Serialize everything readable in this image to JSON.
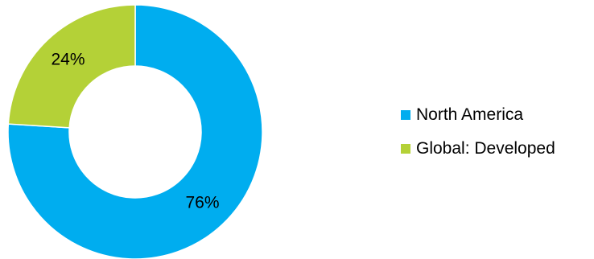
{
  "chart_data": {
    "type": "pie",
    "variant": "donut",
    "title": "",
    "series": [
      {
        "name": "North America",
        "value": 76,
        "label": "76%",
        "color": "#00ADEF"
      },
      {
        "name": "Global: Developed",
        "value": 24,
        "label": "24%",
        "color": "#B4D137"
      }
    ],
    "legend_position": "right",
    "segment_border_color": "#ffffff"
  }
}
